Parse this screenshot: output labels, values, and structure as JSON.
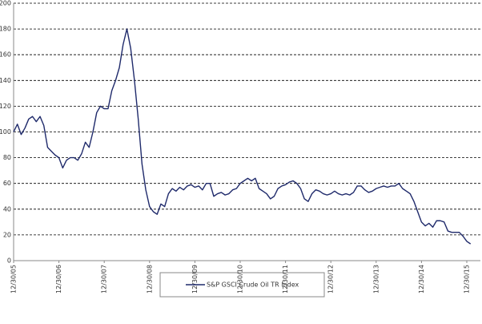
{
  "chart_data": {
    "type": "line",
    "categories": [
      "12/30/05",
      null,
      null,
      null,
      null,
      null,
      null,
      null,
      null,
      null,
      null,
      null,
      "12/30/06",
      null,
      null,
      null,
      null,
      null,
      null,
      null,
      null,
      null,
      null,
      null,
      "12/30/07",
      null,
      null,
      null,
      null,
      null,
      null,
      null,
      null,
      null,
      null,
      null,
      "12/30/08",
      null,
      null,
      null,
      null,
      null,
      null,
      null,
      null,
      null,
      null,
      null,
      "12/30/09",
      null,
      null,
      null,
      null,
      null,
      null,
      null,
      null,
      null,
      null,
      null,
      "12/30/10",
      null,
      null,
      null,
      null,
      null,
      null,
      null,
      null,
      null,
      null,
      null,
      "12/30/11",
      null,
      null,
      null,
      null,
      null,
      null,
      null,
      null,
      null,
      null,
      null,
      "12/30/12",
      null,
      null,
      null,
      null,
      null,
      null,
      null,
      null,
      null,
      null,
      null,
      "12/30/13",
      null,
      null,
      null,
      null,
      null,
      null,
      null,
      null,
      null,
      null,
      null,
      "12/30/14",
      null,
      null,
      null,
      null,
      null,
      null,
      null,
      null,
      null,
      null,
      null,
      "12/30/15",
      null
    ],
    "series": [
      {
        "name": "S&P GSCI Crude Oil TR Index",
        "color": "#1f2a6b",
        "values": [
          100,
          106,
          98,
          103,
          110,
          112,
          108,
          112,
          105,
          88,
          85,
          82,
          80,
          72,
          78,
          80,
          80,
          78,
          83,
          92,
          88,
          100,
          115,
          120,
          118,
          118,
          132,
          140,
          150,
          168,
          180,
          165,
          140,
          110,
          75,
          55,
          42,
          38,
          36,
          44,
          42,
          52,
          56,
          54,
          57,
          55,
          58,
          59,
          57,
          58,
          55,
          60,
          60,
          50,
          52,
          53,
          51,
          52,
          55,
          56,
          60,
          62,
          64,
          62,
          64,
          56,
          54,
          52,
          48,
          50,
          56,
          58,
          59,
          61,
          62,
          60,
          56,
          48,
          46,
          52,
          55,
          54,
          52,
          51,
          52,
          54,
          52,
          51,
          52,
          51,
          53,
          58,
          58,
          55,
          53,
          54,
          56,
          57,
          58,
          57,
          58,
          58,
          60,
          56,
          54,
          52,
          46,
          38,
          30,
          27,
          29,
          26,
          31,
          31,
          30,
          23,
          22,
          22,
          22,
          19,
          15,
          13
        ]
      }
    ],
    "ylim": [
      0,
      200
    ],
    "yticks": [
      0,
      20,
      40,
      60,
      80,
      100,
      120,
      140,
      160,
      180,
      200
    ],
    "grid": true
  }
}
